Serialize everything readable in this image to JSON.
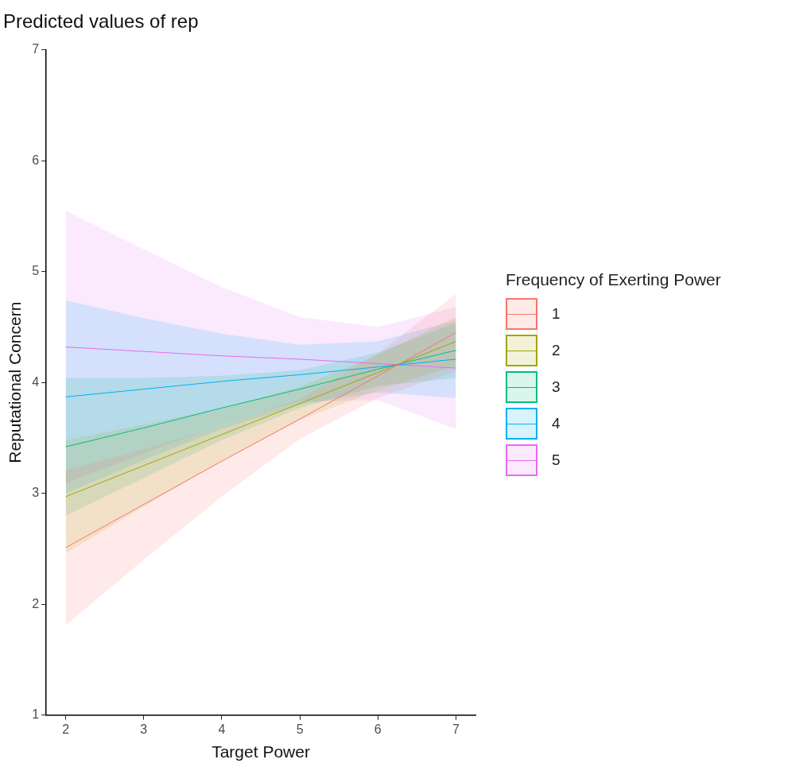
{
  "chart_data": {
    "type": "line",
    "title": "Predicted values of rep",
    "xlabel": "Target Power",
    "ylabel": "Reputational Concern",
    "legend_title": "Frequency of Exerting Power",
    "legend": "right",
    "grid": false,
    "marker": "none",
    "line_style": "solid",
    "xlim": [
      1.75,
      7.25
    ],
    "xticks": [
      2,
      3,
      4,
      5,
      6,
      7
    ],
    "ylim": [
      1,
      7
    ],
    "yticks": [
      1,
      2,
      3,
      4,
      5,
      6,
      7
    ],
    "series": [
      {
        "name": "1",
        "color": "#f8766d",
        "x": [
          2,
          3,
          4,
          5,
          6,
          7
        ],
        "values": [
          2.51,
          2.9,
          3.29,
          3.67,
          4.06,
          4.45
        ],
        "lower": [
          1.81,
          2.4,
          2.97,
          3.49,
          3.86,
          4.1
        ],
        "upper": [
          3.21,
          3.4,
          3.61,
          3.85,
          4.26,
          4.8
        ]
      },
      {
        "name": "2",
        "color": "#a3a500",
        "x": [
          2,
          3,
          4,
          5,
          6,
          7
        ],
        "values": [
          2.97,
          3.25,
          3.53,
          3.81,
          4.09,
          4.37
        ],
        "lower": [
          2.46,
          2.88,
          3.29,
          3.66,
          3.93,
          4.15
        ],
        "upper": [
          3.48,
          3.62,
          3.77,
          3.96,
          4.25,
          4.59
        ]
      },
      {
        "name": "3",
        "color": "#00bf7d",
        "x": [
          2,
          3,
          4,
          5,
          6,
          7
        ],
        "values": [
          3.42,
          3.59,
          3.77,
          3.94,
          4.12,
          4.29
        ],
        "lower": [
          2.8,
          3.14,
          3.48,
          3.77,
          3.97,
          4.04
        ],
        "upper": [
          4.04,
          4.04,
          4.06,
          4.11,
          4.27,
          4.54
        ]
      },
      {
        "name": "4",
        "color": "#00b0f6",
        "x": [
          2,
          3,
          4,
          5,
          6,
          7
        ],
        "values": [
          3.87,
          3.94,
          4.01,
          4.07,
          4.14,
          4.21
        ],
        "lower": [
          3.0,
          3.3,
          3.58,
          3.8,
          3.91,
          3.86
        ],
        "upper": [
          4.74,
          4.58,
          4.44,
          4.34,
          4.37,
          4.56
        ]
      },
      {
        "name": "5",
        "color": "#e76bf3",
        "x": [
          2,
          3,
          4,
          5,
          6,
          7
        ],
        "values": [
          4.32,
          4.28,
          4.24,
          4.21,
          4.17,
          4.13
        ],
        "lower": [
          3.09,
          3.36,
          3.62,
          3.83,
          3.84,
          3.58
        ],
        "upper": [
          5.55,
          5.2,
          4.86,
          4.59,
          4.5,
          4.68
        ]
      }
    ]
  }
}
